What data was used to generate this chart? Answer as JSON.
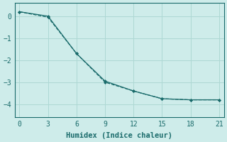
{
  "xlabel": "Humidex (Indice chaleur)",
  "background_color": "#ceecea",
  "line_color": "#1a6b6b",
  "grid_color": "#aed8d4",
  "line1_x": [
    0,
    3,
    6,
    9,
    12,
    15,
    18,
    21
  ],
  "line1_y": [
    0.2,
    -0.05,
    -1.7,
    -3.0,
    -3.4,
    -3.75,
    -3.8,
    -3.8
  ],
  "line2_x": [
    0,
    3,
    6,
    9,
    12,
    15,
    18,
    21
  ],
  "line2_y": [
    0.2,
    0.0,
    -1.7,
    -2.95,
    -3.4,
    -3.75,
    -3.8,
    -3.8
  ],
  "line1_style": "--",
  "line2_style": "-",
  "xlim": [
    -0.5,
    21.5
  ],
  "ylim": [
    -4.6,
    0.6
  ],
  "xticks": [
    0,
    3,
    6,
    9,
    12,
    15,
    18,
    21
  ],
  "yticks": [
    0,
    -1,
    -2,
    -3,
    -4
  ],
  "tick_fontsize": 7,
  "xlabel_fontsize": 7.5
}
